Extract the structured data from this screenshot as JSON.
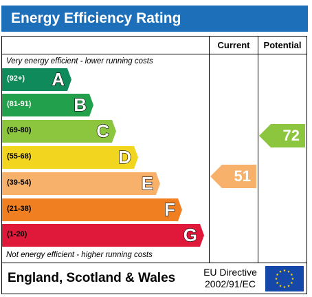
{
  "title": "Energy Efficiency Rating",
  "columns": {
    "current": "Current",
    "potential": "Potential"
  },
  "top_note": "Very energy efficient - lower running costs",
  "bottom_note": "Not energy efficient - higher running costs",
  "bands": [
    {
      "letter": "A",
      "range": "(92+)",
      "color": "#0f8a5a",
      "range_color": "#ffffff"
    },
    {
      "letter": "B",
      "range": "(81-91)",
      "color": "#22a04b",
      "range_color": "#ffffff"
    },
    {
      "letter": "C",
      "range": "(69-80)",
      "color": "#8cc63f",
      "range_color": "#000000"
    },
    {
      "letter": "D",
      "range": "(55-68)",
      "color": "#f2d51f",
      "range_color": "#000000"
    },
    {
      "letter": "E",
      "range": "(39-54)",
      "color": "#f8b16a",
      "range_color": "#000000"
    },
    {
      "letter": "F",
      "range": "(21-38)",
      "color": "#f07f22",
      "range_color": "#000000"
    },
    {
      "letter": "G",
      "range": "(1-20)",
      "color": "#e0193a",
      "range_color": "#000000"
    }
  ],
  "current": {
    "value": "51",
    "band": "E",
    "color": "#f8b16a"
  },
  "potential": {
    "value": "72",
    "band": "C",
    "color": "#8cc63f"
  },
  "footer": {
    "region": "England, Scotland & Wales",
    "directive_line1": "EU Directive",
    "directive_line2": "2002/91/EC"
  }
}
